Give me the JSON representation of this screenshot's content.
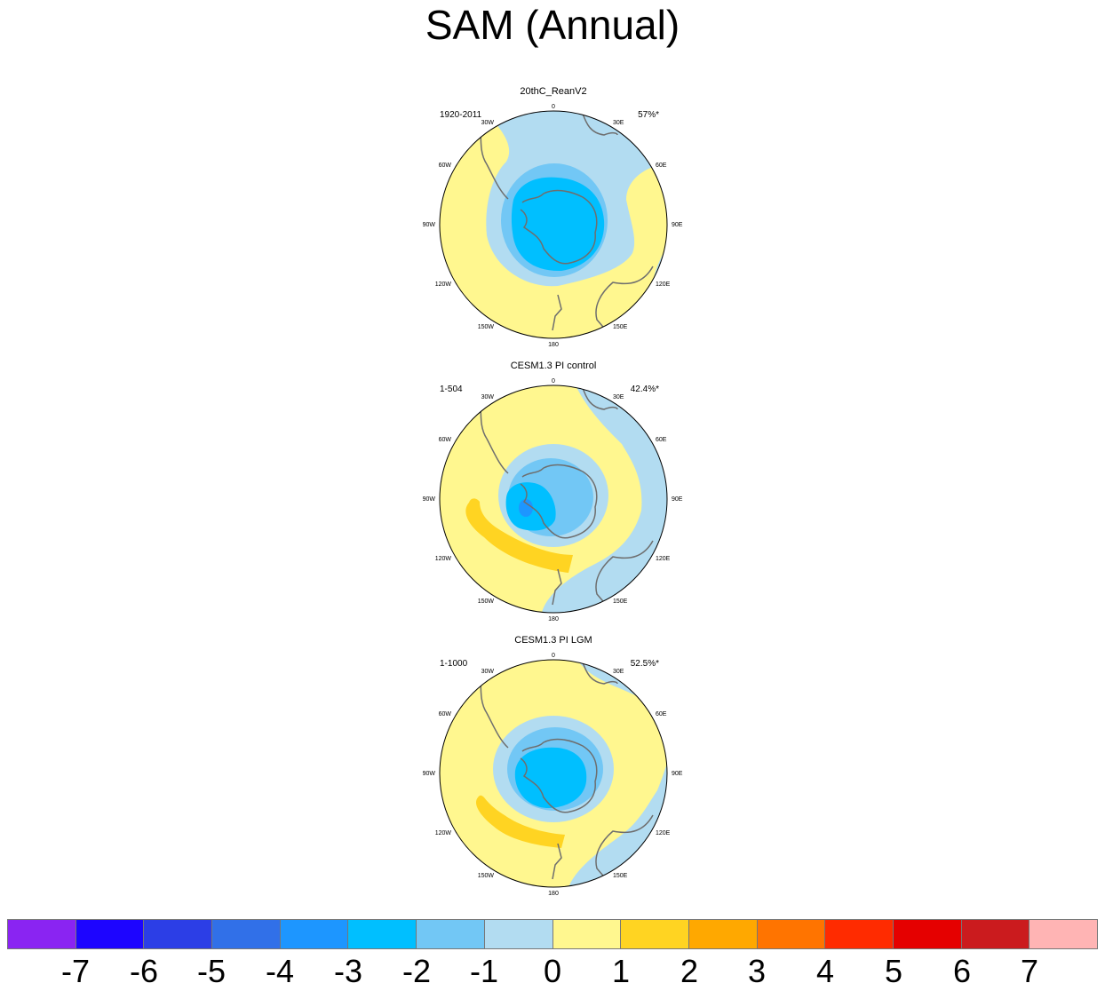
{
  "title": "SAM (Annual)",
  "colors": {
    "neg7": "#8a24f2",
    "neg6": "#1d05ff",
    "neg5": "#2c3ee6",
    "neg4": "#3170e8",
    "neg3": "#1d96ff",
    "neg2": "#00bfff",
    "neg1": "#72c7f5",
    "neg0": "#b2dcf1",
    "pos0": "#fff78f",
    "pos1": "#ffd422",
    "pos2": "#ffa800",
    "pos3": "#ff7400",
    "pos4": "#ff2b00",
    "pos5": "#e50000",
    "pos6": "#cb1b1e",
    "pos7": "#ffb4b4",
    "coast": "#6e6e6e"
  },
  "colorbar": {
    "labels": [
      "-7",
      "-6",
      "-5",
      "-4",
      "-3",
      "-2",
      "-1",
      "0",
      "1",
      "2",
      "3",
      "4",
      "5",
      "6",
      "7"
    ]
  },
  "map_ticks": {
    "top": "0",
    "bottom": "180",
    "left_top": "30W",
    "right_top": "30E",
    "left_upper": "60W",
    "right_upper": "60E",
    "left_mid": "90W",
    "right_mid": "90E",
    "left_lower": "120W",
    "right_lower": "120E",
    "left_bottom": "150W",
    "right_bottom": "150E"
  },
  "panels": [
    {
      "title": "20thC_ReanV2",
      "period": "1920-2011",
      "variance": "57%*"
    },
    {
      "title": "CESM1.3 PI control",
      "period": "1-504",
      "variance": "42.4%*"
    },
    {
      "title": "CESM1.3 PI LGM",
      "period": "1-1000",
      "variance": "52.5%*"
    }
  ]
}
